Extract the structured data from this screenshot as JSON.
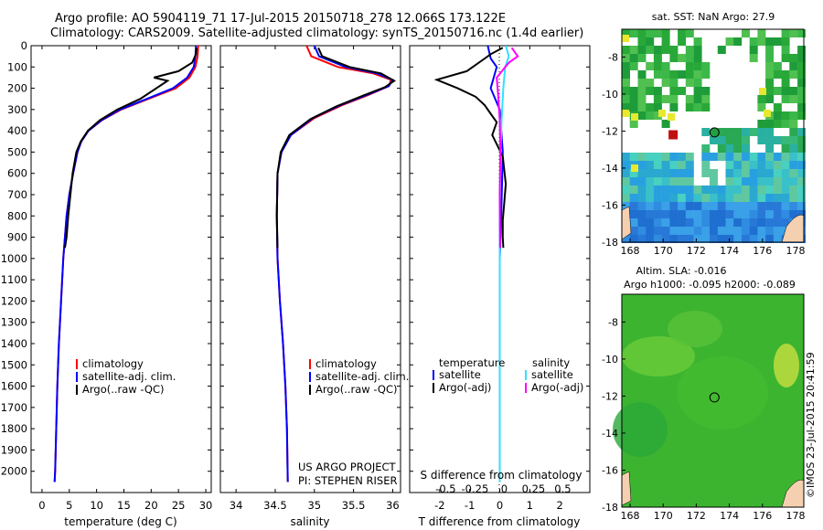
{
  "header": {
    "title_line1": "Argo profile: AO 5904119_71 17-Jul-2015 20150718_278 12.066S 173.122E",
    "title_line2": "Climatology: CARS2009. Satellite-adjusted climatology: synTS_20150716.nc (1.4d earlier)"
  },
  "colors": {
    "climatology": "#ff0000",
    "satellite": "#0000ff",
    "argo": "#000000",
    "sal_satellite": "#33e0ff",
    "sal_argo": "#ff00ff"
  },
  "chart_data": [
    {
      "id": "temperature",
      "type": "line",
      "xlabel": "temperature (deg C)",
      "ylabel": "",
      "xlim": [
        -2,
        31
      ],
      "ylim": [
        2100,
        0
      ],
      "xticks": [
        0,
        5,
        10,
        15,
        20,
        25,
        30
      ],
      "yticks": [
        0,
        100,
        200,
        300,
        400,
        500,
        600,
        700,
        800,
        900,
        1000,
        1100,
        1200,
        1300,
        1400,
        1500,
        1600,
        1700,
        1800,
        1900,
        2000
      ],
      "legend": [
        "climatology",
        "satellite-adj. clim.",
        "Argo(..raw -QC)"
      ],
      "legend_position": "lower-center",
      "series": [
        {
          "name": "climatology",
          "color": "#ff0000",
          "x": [
            28.6,
            28.5,
            28.1,
            27.0,
            24.5,
            19.5,
            14.5,
            11.0,
            8.5,
            7.2,
            6.5,
            5.7,
            5.0,
            4.5,
            3.9,
            3.5,
            3.1,
            2.8,
            2.6,
            2.4,
            2.3
          ],
          "y": [
            0,
            50,
            100,
            150,
            200,
            250,
            300,
            350,
            400,
            450,
            500,
            600,
            700,
            800,
            1000,
            1200,
            1400,
            1600,
            1800,
            2000,
            2050
          ]
        },
        {
          "name": "satellite-adj. clim.",
          "color": "#0000ff",
          "x": [
            28.2,
            28.1,
            27.8,
            26.6,
            24.0,
            19.2,
            14.3,
            10.9,
            8.5,
            7.2,
            6.5,
            5.7,
            5.0,
            4.5,
            3.9,
            3.5,
            3.1,
            2.8,
            2.6,
            2.4,
            2.3
          ],
          "y": [
            0,
            50,
            100,
            150,
            200,
            250,
            300,
            350,
            400,
            450,
            500,
            600,
            700,
            800,
            1000,
            1200,
            1400,
            1600,
            1800,
            2000,
            2050
          ]
        },
        {
          "name": "Argo(..raw -QC)",
          "color": "#000000",
          "x": [
            28.3,
            28.2,
            27.5,
            25.0,
            20.5,
            23.0,
            18.0,
            13.8,
            10.6,
            8.4,
            7.1,
            6.3,
            5.6,
            5.2,
            4.8,
            4.5,
            4.2
          ],
          "y": [
            10,
            40,
            80,
            120,
            150,
            165,
            250,
            300,
            350,
            400,
            450,
            500,
            600,
            700,
            800,
            900,
            950
          ]
        }
      ]
    },
    {
      "id": "salinity",
      "type": "line",
      "xlabel": "salinity",
      "ylabel": "",
      "xlim": [
        33.8,
        36.1
      ],
      "ylim": [
        2100,
        0
      ],
      "xticks": [
        34,
        34.5,
        35,
        35.5,
        36
      ],
      "legend": [
        "climatology",
        "satellite-adj. clim.",
        "Argo(..raw -QC)"
      ],
      "legend_position": "lower-center",
      "series": [
        {
          "name": "climatology",
          "color": "#ff0000",
          "x": [
            34.9,
            34.96,
            35.3,
            35.75,
            35.98,
            35.95,
            35.7,
            35.35,
            35.0,
            34.7,
            34.58,
            34.53,
            34.52,
            34.53,
            34.56,
            34.6,
            34.63,
            34.65,
            34.66
          ],
          "y": [
            0,
            50,
            100,
            130,
            160,
            190,
            230,
            280,
            340,
            420,
            500,
            600,
            800,
            1000,
            1200,
            1400,
            1600,
            1800,
            2050
          ]
        },
        {
          "name": "satellite-adj. clim.",
          "color": "#0000ff",
          "x": [
            35.0,
            35.06,
            35.4,
            35.8,
            36.0,
            35.95,
            35.68,
            35.33,
            34.98,
            34.7,
            34.58,
            34.53,
            34.52,
            34.53,
            34.56,
            34.6,
            34.63,
            34.65,
            34.66
          ],
          "y": [
            0,
            50,
            100,
            130,
            160,
            190,
            230,
            280,
            340,
            420,
            500,
            600,
            800,
            1000,
            1200,
            1400,
            1600,
            1800,
            2050
          ]
        },
        {
          "name": "Argo(..raw -QC)",
          "color": "#000000",
          "x": [
            35.05,
            35.1,
            35.45,
            35.85,
            36.02,
            35.9,
            35.62,
            35.28,
            34.95,
            34.68,
            34.57,
            34.53,
            34.52,
            34.53
          ],
          "y": [
            10,
            50,
            100,
            130,
            165,
            195,
            235,
            285,
            345,
            420,
            500,
            600,
            800,
            950
          ]
        }
      ]
    },
    {
      "id": "difference",
      "type": "line",
      "xlabel": "T difference from climatology",
      "xlabel_secondary": "S difference from climatology",
      "ylabel": "",
      "xlim": [
        -3,
        3
      ],
      "ylim": [
        2100,
        0
      ],
      "xticks": [
        -2,
        -1,
        0,
        1,
        2
      ],
      "xticks_secondary": [
        -0.5,
        -0.25,
        0,
        0.25,
        0.5
      ],
      "legend": [
        "temperature",
        "satellite",
        "Argo(-adj)",
        "salinity",
        "satellite",
        "Argo(-adj)"
      ],
      "series": [
        {
          "name": "satellite",
          "group": "temperature",
          "color": "#0000ff",
          "x": [
            -0.4,
            -0.3,
            -0.1,
            -0.2,
            -0.3,
            0,
            0.1,
            0.05,
            0,
            0,
            0
          ],
          "y": [
            0,
            60,
            100,
            150,
            200,
            300,
            500,
            800,
            1000,
            1500,
            2050
          ]
        },
        {
          "name": "Argo(-adj)",
          "group": "temperature",
          "color": "#000000",
          "x": [
            0.1,
            -0.3,
            -0.5,
            -1.1,
            -2.1,
            -1.4,
            -0.8,
            -0.5,
            -0.3,
            -0.1,
            -0.25,
            0.1,
            0.2,
            0.15,
            0.1,
            0.1,
            0.12
          ],
          "y": [
            10,
            40,
            60,
            120,
            160,
            200,
            240,
            280,
            320,
            360,
            420,
            520,
            650,
            740,
            820,
            900,
            950
          ]
        },
        {
          "name": "satellite",
          "group": "salinity",
          "color": "#33e0ff",
          "x": [
            0.2,
            0.3,
            0.18,
            0.12,
            0.06,
            0.02,
            0,
            0,
            0
          ],
          "y": [
            0,
            50,
            100,
            200,
            350,
            500,
            800,
            1200,
            2050
          ]
        },
        {
          "name": "Argo(-adj)",
          "group": "salinity",
          "color": "#ff00ff",
          "x": [
            0.4,
            0.6,
            0.3,
            -0.1,
            -0.05,
            0,
            0.02,
            0,
            0.01
          ],
          "y": [
            10,
            50,
            80,
            150,
            240,
            350,
            500,
            700,
            950
          ]
        }
      ]
    },
    {
      "id": "sst_map",
      "type": "heatmap",
      "title": "sat. SST: NaN Argo: 27.9",
      "xlim": [
        167.5,
        178.5
      ],
      "ylim": [
        -18,
        -6.5
      ],
      "xticks": [
        168,
        170,
        172,
        174,
        176,
        178
      ],
      "yticks": [
        -8,
        -10,
        -12,
        -14,
        -16,
        -18
      ],
      "marker": {
        "x": 173.1,
        "y": -12.07
      },
      "square": {
        "x": 170.6,
        "y": -12.2
      }
    },
    {
      "id": "sla_map",
      "type": "heatmap",
      "title_line1": "Altim. SLA: -0.016",
      "title_line2": "Argo h1000: -0.095 h2000: -0.089",
      "xlim": [
        167.5,
        178.5
      ],
      "ylim": [
        -18,
        -6.5
      ],
      "xticks": [
        168,
        170,
        172,
        174,
        176,
        178
      ],
      "yticks": [
        -8,
        -10,
        -12,
        -14,
        -16,
        -18
      ],
      "marker": {
        "x": 173.1,
        "y": -12.07
      }
    }
  ],
  "annotations": {
    "us_argo": "US ARGO PROJECT",
    "pi": "PI: STEPHEN RISER",
    "credit": "©IMOS 23-Jul-2015 20:41:59"
  }
}
